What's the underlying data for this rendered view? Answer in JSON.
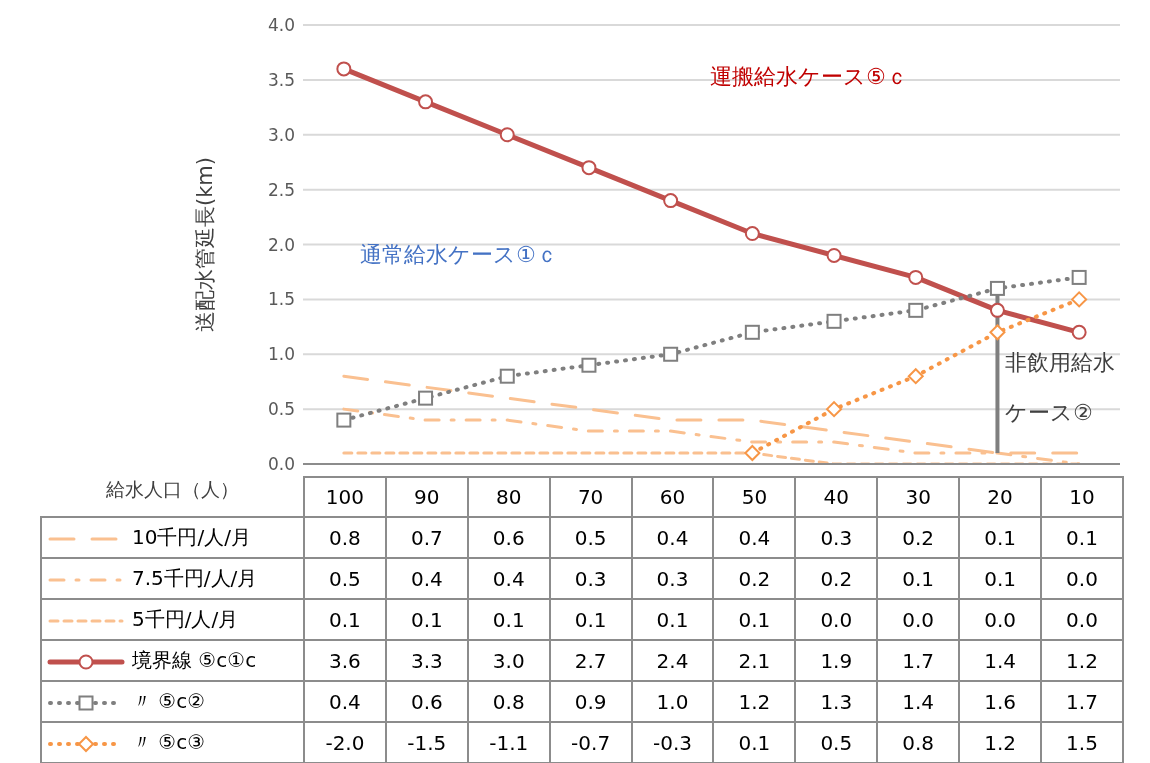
{
  "chart_data": {
    "type": "line",
    "ylabel": "送配水管延長(km)",
    "xlabel": "給水人口（人）",
    "categories": [
      "100",
      "90",
      "80",
      "70",
      "60",
      "50",
      "40",
      "30",
      "20",
      "10"
    ],
    "ylim": [
      0,
      4
    ],
    "yticks": [
      {
        "value": 0,
        "label": "0.0"
      },
      {
        "value": 0.5,
        "label": "0.5"
      },
      {
        "value": 1,
        "label": "1.0"
      },
      {
        "value": 1.5,
        "label": "1.5"
      },
      {
        "value": 2,
        "label": "2.0"
      },
      {
        "value": 2.5,
        "label": "2.5"
      },
      {
        "value": 3,
        "label": "3.0"
      },
      {
        "value": 3.5,
        "label": "3.5"
      },
      {
        "value": 4,
        "label": "4.0"
      }
    ],
    "grid": "y",
    "legend": "bottom",
    "series": [
      {
        "name": "10千円/人/月",
        "color": "#fac090",
        "line_style": "dashed",
        "marker": "none",
        "values": [
          0.8,
          0.7,
          0.6,
          0.5,
          0.4,
          0.4,
          0.3,
          0.2,
          0.1,
          0.1
        ],
        "value_labels": [
          "0.8",
          "0.7",
          "0.6",
          "0.5",
          "0.4",
          "0.4",
          "0.3",
          "0.2",
          "0.1",
          "0.1"
        ]
      },
      {
        "name": "7.5千円/人/月",
        "color": "#fac090",
        "line_style": "dashed",
        "marker": "none",
        "values": [
          0.5,
          0.4,
          0.4,
          0.3,
          0.3,
          0.2,
          0.2,
          0.1,
          0.1,
          0.0
        ],
        "value_labels": [
          "0.5",
          "0.4",
          "0.4",
          "0.3",
          "0.3",
          "0.2",
          "0.2",
          "0.1",
          "0.1",
          "0.0"
        ]
      },
      {
        "name": "5千円/人/月",
        "color": "#fac090",
        "line_style": "dashed",
        "marker": "none",
        "values": [
          0.1,
          0.1,
          0.1,
          0.1,
          0.1,
          0.1,
          0.0,
          0.0,
          0.0,
          0.0
        ],
        "value_labels": [
          "0.1",
          "0.1",
          "0.1",
          "0.1",
          "0.1",
          "0.1",
          "0.0",
          "0.0",
          "0.0",
          "0.0"
        ]
      },
      {
        "name": "境界線 ⑤c①c",
        "color": "#c0504d",
        "line_style": "solid",
        "marker": "circle",
        "values": [
          3.6,
          3.3,
          3.0,
          2.7,
          2.4,
          2.1,
          1.9,
          1.7,
          1.4,
          1.2
        ],
        "value_labels": [
          "3.6",
          "3.3",
          "3.0",
          "2.7",
          "2.4",
          "2.1",
          "1.9",
          "1.7",
          "1.4",
          "1.2"
        ]
      },
      {
        "name": "〃 ⑤c②",
        "color": "#7f7f7f",
        "line_style": "dotted",
        "marker": "square",
        "values": [
          0.4,
          0.6,
          0.8,
          0.9,
          1.0,
          1.2,
          1.3,
          1.4,
          1.6,
          1.7
        ],
        "value_labels": [
          "0.4",
          "0.6",
          "0.8",
          "0.9",
          "1.0",
          "1.2",
          "1.3",
          "1.4",
          "1.6",
          "1.7"
        ],
        "errors": [
          null,
          null,
          null,
          null,
          null,
          null,
          null,
          null,
          [
            0.1,
            1.6
          ],
          null
        ]
      },
      {
        "name": "〃 ⑤c③",
        "color": "#f79646",
        "line_style": "dotted",
        "marker": "diamond",
        "values": [
          null,
          null,
          null,
          null,
          null,
          0.1,
          0.5,
          0.8,
          1.2,
          1.5
        ],
        "value_labels": [
          "-2.0",
          "-1.5",
          "-1.1",
          "-0.7",
          "-0.3",
          "0.1",
          "0.5",
          "0.8",
          "1.2",
          "1.5"
        ]
      }
    ],
    "annotations": [
      "運搬給水ケース⑤ｃ",
      "通常給水ケース①ｃ",
      "非飲用給水ケース②"
    ]
  }
}
